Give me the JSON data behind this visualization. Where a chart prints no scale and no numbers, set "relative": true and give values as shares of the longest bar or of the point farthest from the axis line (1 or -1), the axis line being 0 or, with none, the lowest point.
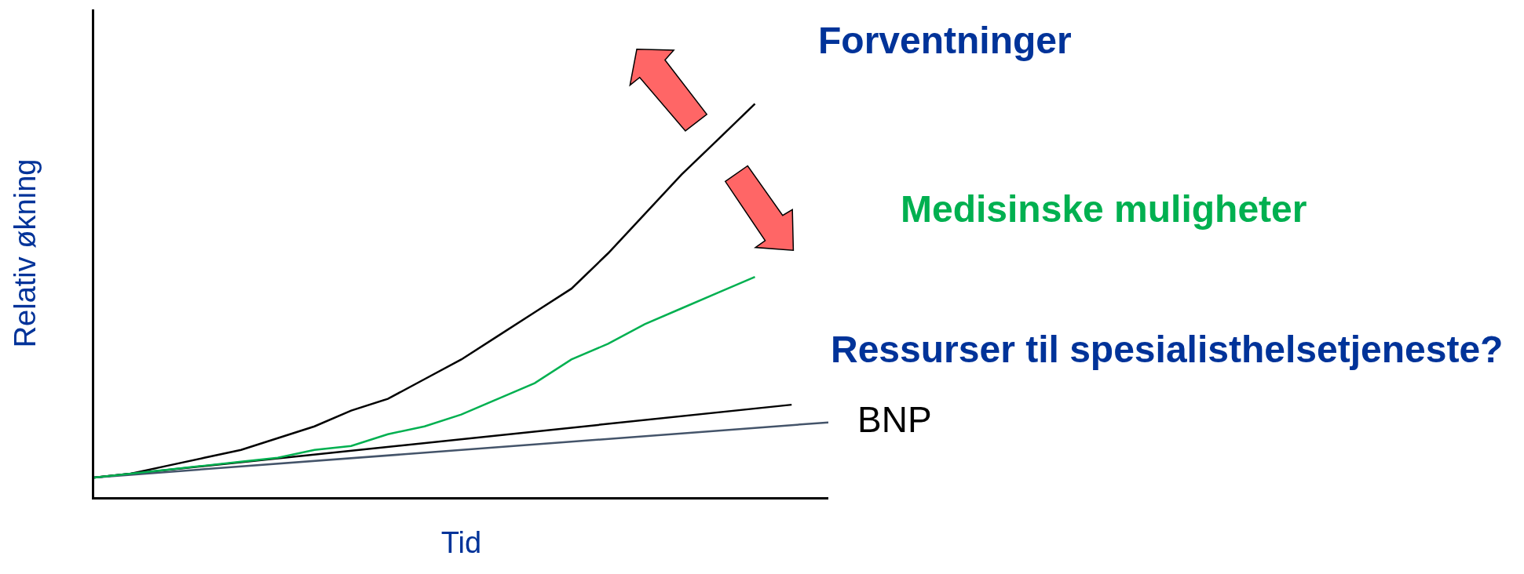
{
  "chart_data": {
    "type": "line",
    "relative": true,
    "xlabel": "Tid",
    "ylabel": "Relativ økning",
    "categories": [
      null,
      null,
      null,
      null,
      null,
      null,
      null,
      null,
      null,
      null,
      null,
      null,
      null,
      null,
      null,
      null,
      null,
      null,
      null,
      null,
      null
    ],
    "series": [
      {
        "name": "Forventninger",
        "color": "#000000",
        "values": [
          0.05,
          0.06,
          0.08,
          0.1,
          0.12,
          0.15,
          0.18,
          0.22,
          0.25,
          0.3,
          0.35,
          0.41,
          0.47,
          0.53,
          0.62,
          0.72,
          0.82,
          0.91,
          1.0,
          null,
          null
        ]
      },
      {
        "name": "Ressurser til spesialisthelsetjeneste?",
        "color": "#000000",
        "values": [
          0.05,
          null,
          null,
          null,
          null,
          null,
          null,
          null,
          null,
          null,
          null,
          null,
          null,
          null,
          null,
          null,
          null,
          null,
          null,
          0.235,
          null
        ]
      },
      {
        "name": "BNP",
        "color": "#44546a",
        "values": [
          0.05,
          null,
          null,
          null,
          null,
          null,
          null,
          null,
          null,
          null,
          null,
          null,
          null,
          null,
          null,
          null,
          null,
          null,
          null,
          null,
          0.19
        ]
      },
      {
        "name": "Medisinske muligheter",
        "color": "#00b050",
        "values": [
          0.05,
          0.06,
          0.07,
          0.08,
          0.09,
          0.1,
          0.12,
          0.13,
          0.16,
          0.18,
          0.21,
          0.25,
          0.29,
          0.35,
          0.39,
          0.44,
          0.48,
          0.52,
          0.56,
          null,
          null
        ]
      }
    ],
    "legend": false,
    "marker": "none",
    "line_style": "solid"
  }
}
